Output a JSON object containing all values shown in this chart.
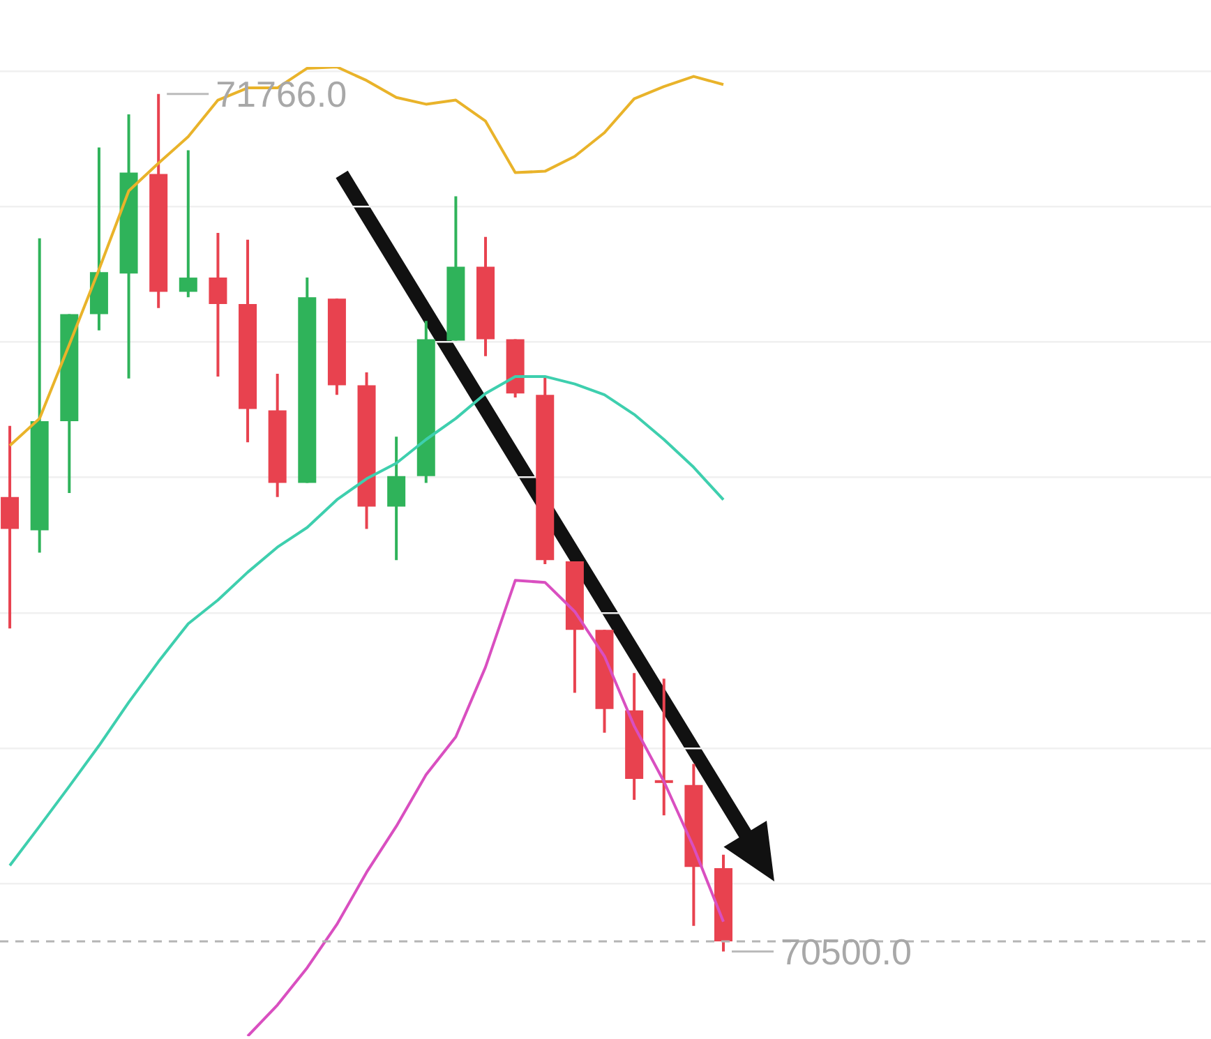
{
  "chart_data": {
    "type": "candlestick",
    "categories": [
      null,
      null,
      null,
      null,
      null,
      null,
      null,
      null,
      null,
      null,
      null,
      null,
      null,
      null,
      null,
      null,
      null,
      null,
      null,
      null,
      null,
      null,
      null,
      null,
      null
    ],
    "ohlc": [
      [
        71171,
        71276,
        70977,
        71124
      ],
      [
        71122,
        71553,
        71089,
        71283
      ],
      [
        71283,
        71441,
        71177,
        71441
      ],
      [
        71441,
        71687,
        71417,
        71503
      ],
      [
        71501,
        71736,
        71346,
        71650
      ],
      [
        71648,
        71766,
        71450,
        71474
      ],
      [
        71474,
        71683,
        71466,
        71495
      ],
      [
        71495,
        71561,
        71349,
        71456
      ],
      [
        71456,
        71551,
        71252,
        71301
      ],
      [
        71299,
        71353,
        71171,
        71192
      ],
      [
        71192,
        71495,
        71192,
        71466
      ],
      [
        71464,
        71464,
        71322,
        71336
      ],
      [
        71336,
        71355,
        71124,
        71157
      ],
      [
        71157,
        71260,
        71078,
        71202
      ],
      [
        71202,
        71431,
        71192,
        71404
      ],
      [
        71402,
        71615,
        71402,
        71511
      ],
      [
        71511,
        71555,
        71379,
        71404
      ],
      [
        71404,
        71404,
        71318,
        71324
      ],
      [
        71322,
        71349,
        71072,
        71078
      ],
      [
        71076,
        71076,
        70882,
        70975
      ],
      [
        70975,
        70975,
        70823,
        70858
      ],
      [
        70856,
        70911,
        70724,
        70755
      ],
      [
        70753,
        70903,
        70701,
        70751
      ],
      [
        70746,
        70777,
        70538,
        70625
      ],
      [
        70623,
        70643,
        70500,
        70515
      ]
    ],
    "colors": [
      "#e8424f",
      "#2fb35a",
      "#2fb35a",
      "#2fb35a",
      "#2fb35a",
      "#e8424f",
      "#2fb35a",
      "#e8424f",
      "#e8424f",
      "#e8424f",
      "#2fb35a",
      "#e8424f",
      "#e8424f",
      "#2fb35a",
      "#2fb35a",
      "#2fb35a",
      "#e8424f",
      "#e8424f",
      "#e8424f",
      "#e8424f",
      "#e8424f",
      "#e8424f",
      "#e8424f",
      "#e8424f",
      "#e8424f"
    ],
    "series": [
      {
        "type": "line",
        "color": "#e9b32a",
        "values": [
          71247,
          71287,
          71396,
          71507,
          71623,
          71664,
          71703,
          71757,
          71775,
          71775,
          71804,
          71806,
          71786,
          71761,
          71751,
          71757,
          71726,
          71650,
          71652,
          71674,
          71709,
          71759,
          71777,
          71792,
          71780
        ]
      },
      {
        "type": "line",
        "color": "#3ecfae",
        "values": [
          70627,
          70685,
          70744,
          70804,
          70868,
          70928,
          70984,
          71019,
          71060,
          71097,
          71126,
          71167,
          71198,
          71221,
          71256,
          71287,
          71324,
          71349,
          71349,
          71338,
          71322,
          71293,
          71256,
          71215,
          71167
        ]
      },
      {
        "type": "line",
        "color": "#d94fc0",
        "values": [
          null,
          null,
          null,
          null,
          null,
          null,
          null,
          null,
          70375,
          70421,
          70476,
          70540,
          70617,
          70685,
          70761,
          70817,
          70920,
          71048,
          71045,
          71002,
          70936,
          70833,
          70751,
          70654,
          70544
        ]
      }
    ],
    "yticks": [
      {
        "value": 70600,
        "label": null
      },
      {
        "value": 70800,
        "label": null
      },
      {
        "value": 71000,
        "label": null
      },
      {
        "value": 71200,
        "label": null
      },
      {
        "value": 71400,
        "label": null
      },
      {
        "value": 71600,
        "label": null
      },
      {
        "value": 71800,
        "label": null
      }
    ],
    "grid": "y",
    "tick_labels": false,
    "marker": "none",
    "ref_lines": [
      {
        "axis": "y",
        "value": 70515,
        "color": "#b5b5b5",
        "line_style": "dashed"
      }
    ],
    "annotations": [
      "71766.0",
      "70500.0"
    ]
  }
}
